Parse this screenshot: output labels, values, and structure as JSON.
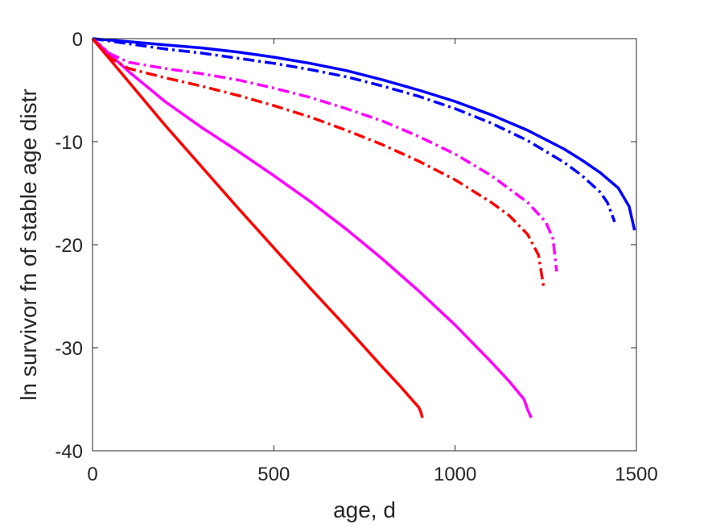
{
  "chart_data": {
    "type": "line",
    "title": "",
    "xlabel": "age, d",
    "ylabel": "ln survivor fn of stable age distr",
    "xlim": [
      0,
      1500
    ],
    "ylim": [
      -40,
      0
    ],
    "xticks": [
      0,
      500,
      1000,
      1500
    ],
    "yticks": [
      0,
      -10,
      -20,
      -30,
      -40
    ],
    "xtick_labels": [
      "0",
      "500",
      "1000",
      "1500"
    ],
    "ytick_labels": [
      "0",
      "-10",
      "-20",
      "-30",
      "-40"
    ],
    "grid": false,
    "legend": "none",
    "series": [
      {
        "color": "#0000ff",
        "style": "solid",
        "x": [
          0,
          100,
          200,
          300,
          400,
          500,
          600,
          700,
          800,
          900,
          1000,
          1100,
          1200,
          1300,
          1350,
          1400,
          1450,
          1480,
          1495
        ],
        "y": [
          0,
          -0.3,
          -0.6,
          -0.9,
          -1.3,
          -1.8,
          -2.4,
          -3.1,
          -4.0,
          -5.0,
          -6.1,
          -7.4,
          -8.9,
          -10.7,
          -11.8,
          -13.0,
          -14.5,
          -16.3,
          -18.6
        ]
      },
      {
        "color": "#0000ff",
        "style": "dashdot",
        "x": [
          0,
          100,
          200,
          300,
          400,
          500,
          600,
          700,
          800,
          900,
          1000,
          1100,
          1200,
          1300,
          1350,
          1400,
          1420,
          1440
        ],
        "y": [
          0,
          -0.5,
          -1.0,
          -1.4,
          -1.9,
          -2.4,
          -3.0,
          -3.7,
          -4.6,
          -5.6,
          -6.8,
          -8.2,
          -9.9,
          -12.0,
          -13.3,
          -14.9,
          -15.9,
          -17.8
        ]
      },
      {
        "color": "#ff00ff",
        "style": "solid",
        "x": [
          0,
          100,
          200,
          300,
          400,
          500,
          600,
          700,
          800,
          900,
          1000,
          1100,
          1150,
          1190,
          1200,
          1210
        ],
        "y": [
          0,
          -3.2,
          -6.1,
          -8.6,
          -10.9,
          -13.3,
          -15.8,
          -18.5,
          -21.4,
          -24.5,
          -27.8,
          -31.4,
          -33.3,
          -35.0,
          -36.0,
          -36.8
        ]
      },
      {
        "color": "#ff00ff",
        "style": "dashdot",
        "x": [
          0,
          50,
          100,
          200,
          300,
          400,
          500,
          600,
          700,
          800,
          900,
          1000,
          1100,
          1200,
          1250,
          1270,
          1280
        ],
        "y": [
          0,
          -1.5,
          -2.3,
          -2.9,
          -3.4,
          -4.0,
          -4.8,
          -5.7,
          -6.8,
          -8.0,
          -9.5,
          -11.2,
          -13.3,
          -15.9,
          -17.8,
          -19.4,
          -22.6
        ]
      },
      {
        "color": "#ff0000",
        "style": "solid",
        "x": [
          0,
          100,
          200,
          300,
          400,
          500,
          600,
          700,
          800,
          850,
          880,
          900,
          905,
          910
        ],
        "y": [
          0,
          -4.2,
          -8.4,
          -12.4,
          -16.4,
          -20.3,
          -24.2,
          -28.0,
          -31.9,
          -33.8,
          -35.0,
          -35.8,
          -36.2,
          -36.8
        ]
      },
      {
        "color": "#ff0000",
        "style": "dashdot",
        "x": [
          0,
          50,
          100,
          200,
          300,
          400,
          500,
          600,
          700,
          800,
          900,
          1000,
          1100,
          1150,
          1200,
          1230,
          1245
        ],
        "y": [
          0,
          -1.9,
          -2.9,
          -3.8,
          -4.6,
          -5.5,
          -6.5,
          -7.6,
          -8.9,
          -10.3,
          -11.9,
          -13.7,
          -15.9,
          -17.2,
          -19.0,
          -21.0,
          -24.3
        ]
      }
    ]
  }
}
